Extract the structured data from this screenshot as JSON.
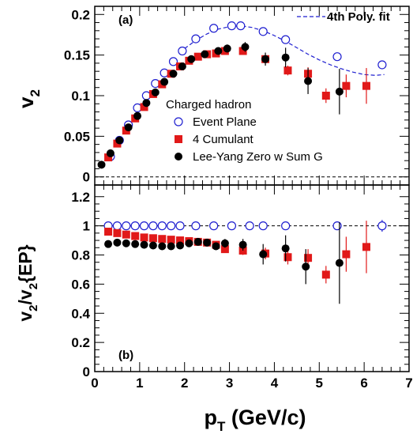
{
  "chart_data": [
    {
      "panel": "(a)",
      "type": "scatter",
      "ylabel": "v2",
      "xlim": [
        0,
        7
      ],
      "ylim": [
        -0.01,
        0.21
      ],
      "yticks": [
        "0",
        "0.05",
        "0.1",
        "0.15",
        "0.2"
      ],
      "zero_line": "dashed",
      "legend_title": "Charged hadron",
      "fit_label": "4th Poly. fit",
      "series": [
        {
          "name": "Event Plane",
          "marker": "open-circle",
          "color": "#1f1fd0",
          "x": [
            0.35,
            0.55,
            0.75,
            0.95,
            1.15,
            1.35,
            1.55,
            1.75,
            1.95,
            2.25,
            2.65,
            3.05,
            3.25,
            3.75,
            4.25,
            5.4,
            6.4
          ],
          "y": [
            0.025,
            0.045,
            0.064,
            0.085,
            0.1,
            0.115,
            0.128,
            0.142,
            0.155,
            0.17,
            0.183,
            0.186,
            0.186,
            0.179,
            0.169,
            0.148,
            0.138
          ],
          "err": [
            0.002,
            0.002,
            0.002,
            0.002,
            0.002,
            0.002,
            0.002,
            0.002,
            0.002,
            0.002,
            0.002,
            0.002,
            0.002,
            0.002,
            0.003,
            0.004,
            0.005
          ]
        },
        {
          "name": "4 Cumulant",
          "marker": "filled-square",
          "color": "#e11919",
          "x": [
            0.3,
            0.5,
            0.7,
            0.9,
            1.1,
            1.3,
            1.5,
            1.7,
            1.9,
            2.1,
            2.3,
            2.5,
            2.7,
            2.9,
            3.3,
            3.8,
            4.3,
            4.75,
            5.15,
            5.6,
            6.05
          ],
          "y": [
            0.024,
            0.041,
            0.057,
            0.072,
            0.086,
            0.102,
            0.114,
            0.127,
            0.136,
            0.143,
            0.148,
            0.151,
            0.152,
            0.155,
            0.155,
            0.145,
            0.131,
            0.127,
            0.1,
            0.112,
            0.112
          ],
          "err": [
            0.001,
            0.001,
            0.001,
            0.001,
            0.001,
            0.002,
            0.002,
            0.002,
            0.002,
            0.002,
            0.002,
            0.003,
            0.003,
            0.003,
            0.004,
            0.005,
            0.006,
            0.008,
            0.009,
            0.014,
            0.022
          ]
        },
        {
          "name": "Lee-Yang Zero w Sum G",
          "marker": "filled-circle",
          "color": "#000000",
          "x": [
            0.15,
            0.35,
            0.55,
            0.75,
            0.95,
            1.15,
            1.35,
            1.55,
            1.75,
            1.95,
            2.15,
            2.45,
            2.75,
            2.95,
            3.35,
            3.8,
            4.25,
            4.75,
            5.45
          ],
          "y": [
            0.015,
            0.029,
            0.045,
            0.061,
            0.075,
            0.091,
            0.104,
            0.117,
            0.127,
            0.136,
            0.145,
            0.151,
            0.155,
            0.158,
            0.16,
            0.145,
            0.147,
            0.118,
            0.105
          ],
          "err": [
            0.001,
            0.001,
            0.001,
            0.002,
            0.002,
            0.002,
            0.002,
            0.003,
            0.003,
            0.003,
            0.003,
            0.004,
            0.004,
            0.005,
            0.006,
            0.008,
            0.012,
            0.016,
            0.028
          ]
        }
      ],
      "fit": {
        "name": "4th Poly. fit",
        "color": "#1f1fd0",
        "style": "dashed",
        "x": [
          2.0,
          2.25,
          2.5,
          2.75,
          3.0,
          3.25,
          3.5,
          3.75,
          4.0,
          4.25,
          4.5,
          4.75,
          5.0,
          5.25,
          5.5,
          5.75,
          6.0,
          6.25,
          6.45
        ],
        "y": [
          0.158,
          0.168,
          0.176,
          0.182,
          0.185,
          0.186,
          0.184,
          0.18,
          0.174,
          0.167,
          0.159,
          0.151,
          0.144,
          0.138,
          0.133,
          0.129,
          0.126,
          0.125,
          0.126
        ]
      }
    },
    {
      "panel": "(b)",
      "type": "scatter",
      "ylabel": "v2/v2{EP}",
      "xlabel": "pT (GeV/c)",
      "xlim": [
        0,
        7
      ],
      "ylim": [
        0,
        1.28
      ],
      "xticks": [
        "0",
        "1",
        "2",
        "3",
        "4",
        "5",
        "6",
        "7"
      ],
      "yticks": [
        "0",
        "0.2",
        "0.4",
        "0.6",
        "0.8",
        "1",
        "1.2"
      ],
      "reference_line": {
        "y": 1,
        "style": "dashed"
      },
      "series": [
        {
          "name": "Event Plane",
          "marker": "open-circle",
          "color": "#1f1fd0",
          "x": [
            0.3,
            0.5,
            0.7,
            0.9,
            1.1,
            1.3,
            1.5,
            1.7,
            1.9,
            2.25,
            2.65,
            3.05,
            3.45,
            3.75,
            4.25,
            5.4,
            6.4
          ],
          "y": [
            1,
            1,
            1,
            1,
            1,
            1,
            1,
            1,
            1,
            1,
            1,
            1,
            1,
            1,
            1,
            1,
            1
          ],
          "err": [
            0,
            0,
            0,
            0,
            0,
            0,
            0,
            0,
            0,
            0,
            0,
            0,
            0,
            0,
            0,
            0,
            0.04
          ]
        },
        {
          "name": "4 Cumulant",
          "marker": "filled-square",
          "color": "#e11919",
          "x": [
            0.3,
            0.5,
            0.7,
            0.9,
            1.1,
            1.3,
            1.5,
            1.7,
            1.9,
            2.1,
            2.3,
            2.5,
            2.7,
            2.9,
            3.3,
            3.8,
            4.3,
            4.75,
            5.15,
            5.6,
            6.05
          ],
          "y": [
            0.96,
            0.95,
            0.94,
            0.93,
            0.92,
            0.915,
            0.91,
            0.905,
            0.9,
            0.895,
            0.89,
            0.885,
            0.87,
            0.84,
            0.83,
            0.81,
            0.785,
            0.78,
            0.665,
            0.805,
            0.855
          ],
          "err": [
            0.01,
            0.01,
            0.01,
            0.01,
            0.01,
            0.01,
            0.01,
            0.01,
            0.01,
            0.01,
            0.01,
            0.015,
            0.02,
            0.02,
            0.03,
            0.04,
            0.05,
            0.06,
            0.06,
            0.12,
            0.18
          ]
        },
        {
          "name": "Lee-Yang Zero w Sum G",
          "marker": "filled-circle",
          "color": "#000000",
          "x": [
            0.3,
            0.5,
            0.7,
            0.9,
            1.1,
            1.3,
            1.5,
            1.7,
            1.9,
            2.1,
            2.3,
            2.5,
            2.7,
            2.9,
            3.3,
            3.75,
            4.25,
            4.7,
            5.45
          ],
          "y": [
            0.875,
            0.885,
            0.88,
            0.875,
            0.87,
            0.865,
            0.86,
            0.86,
            0.865,
            0.88,
            0.89,
            0.885,
            0.86,
            0.88,
            0.87,
            0.805,
            0.845,
            0.72,
            0.745
          ],
          "err": [
            0.01,
            0.01,
            0.01,
            0.01,
            0.01,
            0.01,
            0.01,
            0.01,
            0.015,
            0.015,
            0.02,
            0.02,
            0.025,
            0.03,
            0.04,
            0.07,
            0.09,
            0.12,
            0.28
          ]
        }
      ]
    }
  ]
}
